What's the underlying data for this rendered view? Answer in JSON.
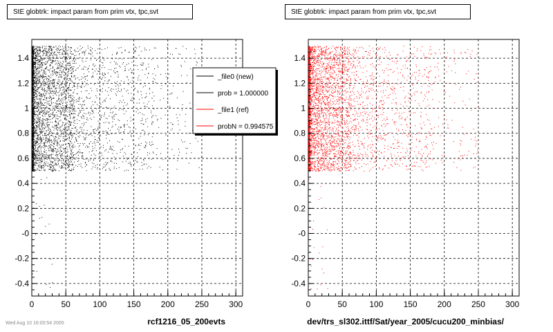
{
  "panels": [
    {
      "title": "StE globtrk: impact param from prim vtx, tpc,svt",
      "xtitle": "rcf1216_05_200evts",
      "marker_color": "#000000"
    },
    {
      "title": "StE globtrk: impact param from prim vtx, tpc,svt",
      "xtitle": "dev/trs_sl302.ittf/Sat/year_2005/cucu200_minbias/",
      "marker_color": "#ff0000"
    }
  ],
  "legend": {
    "entries": [
      {
        "label": "_file0 (new)",
        "color": "#000000"
      },
      {
        "label": "prob = 1.000000",
        "color": "#000000"
      },
      {
        "label": "_file1 (ref)",
        "color": "#ff0000"
      },
      {
        "label": "probN = 0.994575",
        "color": "#ff0000"
      }
    ]
  },
  "footer": "Wed Aug 10 16:00:54 2005",
  "chart_data": [
    {
      "type": "scatter",
      "title": "StE globtrk: impact param from prim vtx, tpc,svt",
      "xlabel": "rcf1216_05_200evts",
      "ylabel": "",
      "xlim": [
        0,
        310
      ],
      "ylim": [
        -0.5,
        1.55
      ],
      "xticks": [
        0,
        50,
        100,
        150,
        200,
        250,
        300
      ],
      "yticks": [
        -0.4,
        -0.2,
        0,
        0.2,
        0.4,
        0.6,
        0.8,
        1,
        1.2,
        1.4
      ],
      "ytick_labels": [
        "-0.4",
        "-0.2",
        "-0",
        "0.2",
        "0.4",
        "0.6",
        "0.8",
        "1",
        "1.2",
        "1.4"
      ],
      "grid": true,
      "legend_position": "top-right",
      "series": [
        {
          "name": "_file0 (new)",
          "color": "#000000",
          "regions": [
            {
              "x": [
                0,
                2
              ],
              "y": [
                0.5,
                1.5
              ],
              "density": "very high"
            },
            {
              "x": [
                2,
                60
              ],
              "y": [
                0.5,
                1.5
              ],
              "density": "high"
            },
            {
              "x": [
                60,
                180
              ],
              "y": [
                0.5,
                1.5
              ],
              "density": "medium"
            },
            {
              "x": [
                180,
                250
              ],
              "y": [
                0.5,
                1.5
              ],
              "density": "low"
            },
            {
              "x": [
                0,
                30
              ],
              "y": [
                -0.45,
                0.5
              ],
              "density": "sparse"
            }
          ]
        }
      ]
    },
    {
      "type": "scatter",
      "title": "StE globtrk: impact param from prim vtx, tpc,svt",
      "xlabel": "dev/trs_sl302.ittf/Sat/year_2005/cucu200_minbias/",
      "ylabel": "",
      "xlim": [
        0,
        310
      ],
      "ylim": [
        -0.5,
        1.55
      ],
      "xticks": [
        0,
        50,
        100,
        150,
        200,
        250,
        300
      ],
      "yticks": [
        -0.4,
        -0.2,
        0,
        0.2,
        0.4,
        0.6,
        0.8,
        1,
        1.2,
        1.4
      ],
      "ytick_labels": [
        "-0.4",
        "-0.2",
        "-0",
        "0.2",
        "0.4",
        "0.6",
        "0.8",
        "1",
        "1.2",
        "1.4"
      ],
      "grid": true,
      "series": [
        {
          "name": "_file1 (ref)",
          "color": "#ff0000",
          "regions": [
            {
              "x": [
                0,
                2
              ],
              "y": [
                0.5,
                1.5
              ],
              "density": "very high"
            },
            {
              "x": [
                2,
                60
              ],
              "y": [
                0.5,
                1.5
              ],
              "density": "high"
            },
            {
              "x": [
                60,
                180
              ],
              "y": [
                0.5,
                1.5
              ],
              "density": "medium"
            },
            {
              "x": [
                180,
                250
              ],
              "y": [
                0.5,
                1.5
              ],
              "density": "low"
            },
            {
              "x": [
                0,
                30
              ],
              "y": [
                -0.45,
                0.5
              ],
              "density": "sparse"
            }
          ]
        }
      ]
    }
  ]
}
